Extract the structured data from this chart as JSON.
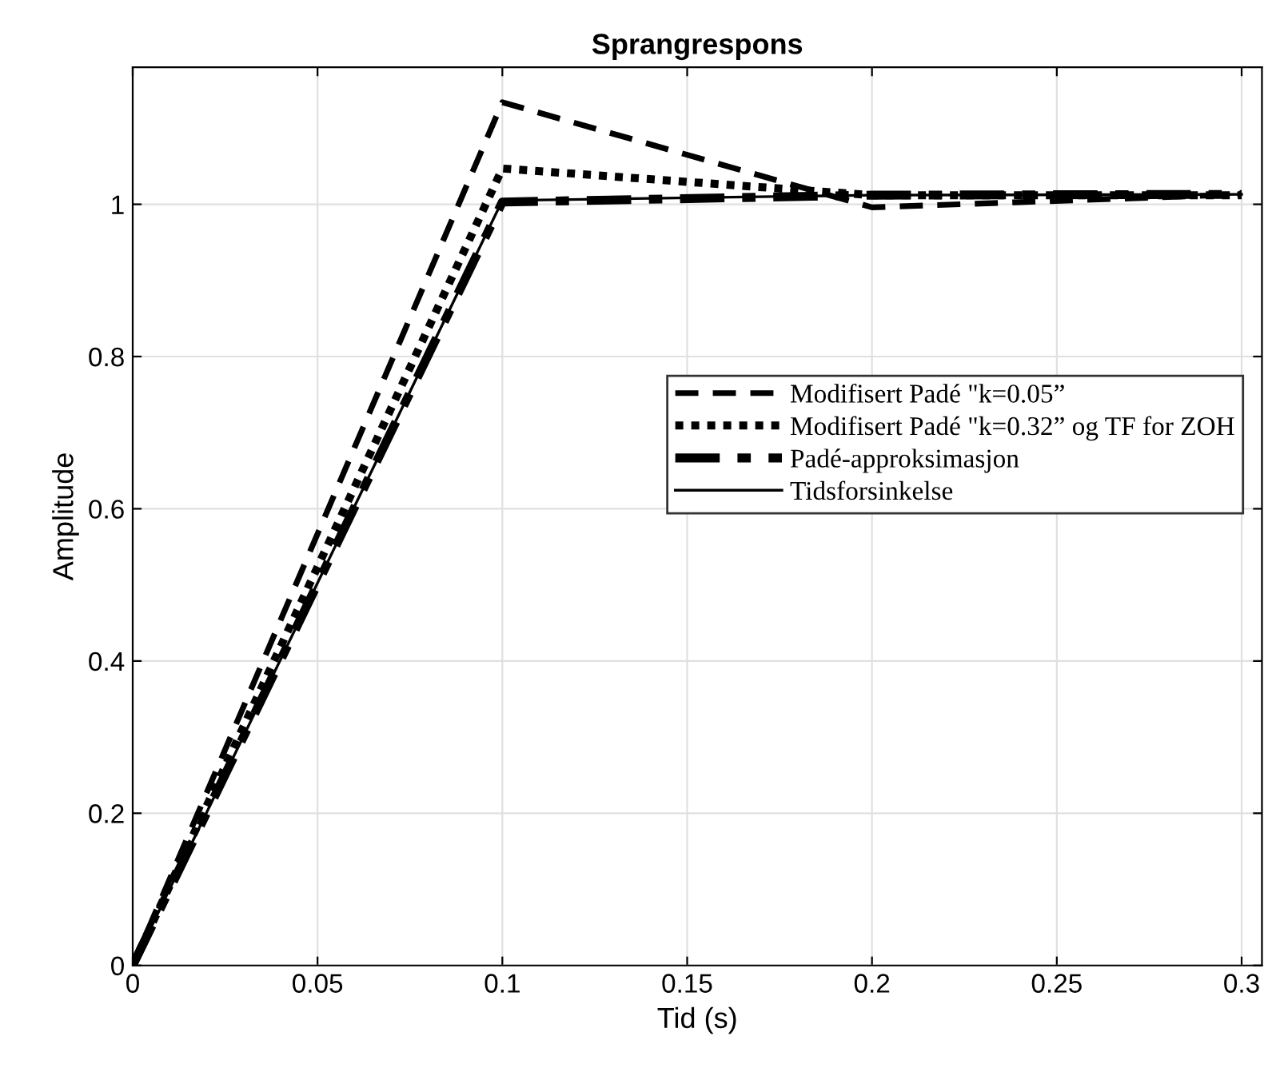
{
  "chart_data": {
    "type": "line",
    "title": "Sprangrespons",
    "xlabel": "Tid (s)",
    "ylabel": "Amplitude",
    "x": [
      0,
      0.1,
      0.2,
      0.3
    ],
    "series": [
      {
        "name": "Modifisert Padé \"k=0.05”",
        "color": "#000000",
        "line_style": "dashed",
        "values": [
          0,
          1.134,
          0.996,
          1.013
        ]
      },
      {
        "name": "Modifisert Padé \"k=0.32” og TF for ZOH",
        "color": "#000000",
        "line_style": "dotted",
        "values": [
          0,
          1.047,
          1.012,
          1.012
        ]
      },
      {
        "name": "Padé-approksimasjon",
        "color": "#000000",
        "line_style": "dashdot",
        "values": [
          0,
          1.003,
          1.012,
          1.013
        ]
      },
      {
        "name": "Tidsforsinkelse",
        "color": "#000000",
        "line_style": "solid",
        "values": [
          0,
          1.005,
          1.012,
          1.013
        ]
      }
    ],
    "xlim": [
      0,
      0.3055
    ],
    "ylim": [
      0,
      1.18
    ],
    "xticks": [
      0,
      0.05,
      0.1,
      0.15,
      0.2,
      0.25,
      0.3
    ],
    "yticks": [
      0,
      0.2,
      0.4,
      0.6,
      0.8,
      1
    ],
    "grid": true,
    "legend": "right",
    "marker": "none"
  }
}
